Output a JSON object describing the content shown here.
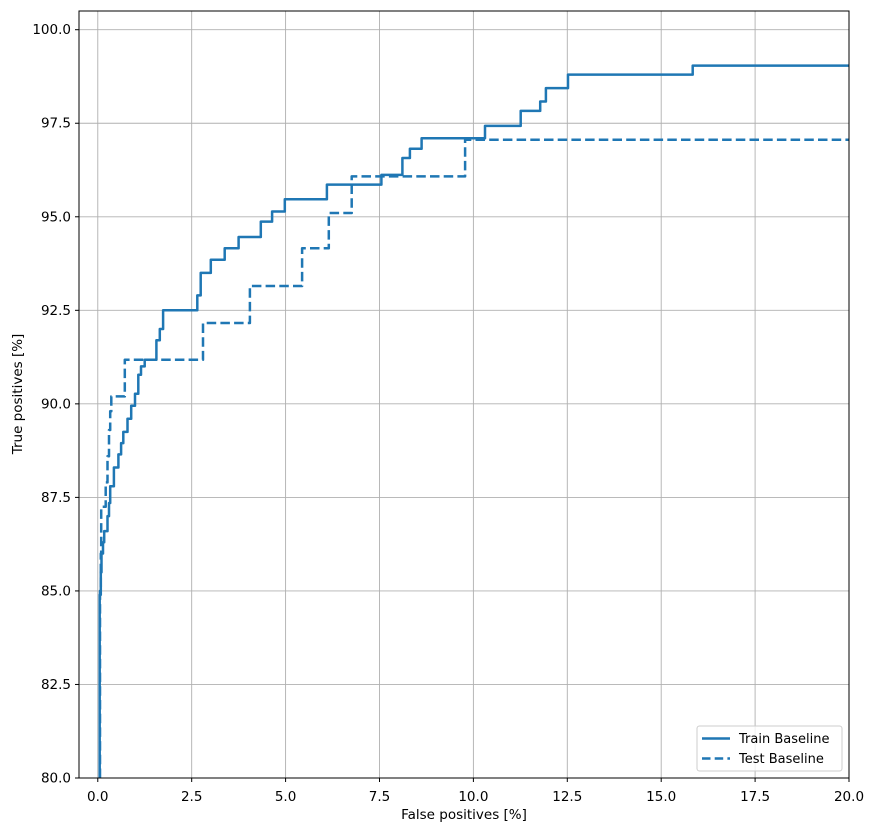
{
  "chart_data": {
    "type": "line",
    "title": "",
    "xlabel": "False positives [%]",
    "ylabel": "True positives [%]",
    "xlim": [
      -0.5,
      20
    ],
    "ylim": [
      80,
      100.5
    ],
    "xticks": [
      0,
      2.5,
      5,
      7.5,
      10,
      12.5,
      15,
      17.5,
      20
    ],
    "xtick_labels": [
      "0.0",
      "2.5",
      "5.0",
      "7.5",
      "10.0",
      "12.5",
      "15.0",
      "17.5",
      "20.0"
    ],
    "yticks": [
      80,
      82.5,
      85,
      87.5,
      90,
      92.5,
      95,
      97.5,
      100
    ],
    "ytick_labels": [
      "80.0",
      "82.5",
      "85.0",
      "87.5",
      "90.0",
      "92.5",
      "95.0",
      "97.5",
      "100.0"
    ],
    "grid": true,
    "grid_color": "#b0b0b0",
    "line_color": "#1f77b4",
    "legend": {
      "position": "lower right",
      "entries": [
        "Train Baseline",
        "Test Baseline"
      ]
    },
    "series": [
      {
        "name": "Train Baseline",
        "line_style": "solid",
        "step_mode": "post",
        "points": [
          [
            0.05,
            80.0
          ],
          [
            0.05,
            84.9
          ],
          [
            0.08,
            85.5
          ],
          [
            0.1,
            86.0
          ],
          [
            0.14,
            86.3
          ],
          [
            0.17,
            86.6
          ],
          [
            0.26,
            87.0
          ],
          [
            0.3,
            87.35
          ],
          [
            0.33,
            87.8
          ],
          [
            0.43,
            88.3
          ],
          [
            0.55,
            88.65
          ],
          [
            0.62,
            88.95
          ],
          [
            0.68,
            89.25
          ],
          [
            0.79,
            89.6
          ],
          [
            0.89,
            89.95
          ],
          [
            0.99,
            90.27
          ],
          [
            1.08,
            90.78
          ],
          [
            1.15,
            91.0
          ],
          [
            1.25,
            91.18
          ],
          [
            1.56,
            91.7
          ],
          [
            1.65,
            92.0
          ],
          [
            1.74,
            92.5
          ],
          [
            2.65,
            92.9
          ],
          [
            2.74,
            93.5
          ],
          [
            3.01,
            93.85
          ],
          [
            3.38,
            94.16
          ],
          [
            3.75,
            94.46
          ],
          [
            4.34,
            94.87
          ],
          [
            4.64,
            95.14
          ],
          [
            4.98,
            95.47
          ],
          [
            6.1,
            95.86
          ],
          [
            7.55,
            96.12
          ],
          [
            8.11,
            96.57
          ],
          [
            8.31,
            96.82
          ],
          [
            8.62,
            97.1
          ],
          [
            10.31,
            97.43
          ],
          [
            11.26,
            97.83
          ],
          [
            11.78,
            98.08
          ],
          [
            11.93,
            98.44
          ],
          [
            12.52,
            98.8
          ],
          [
            15.84,
            99.04
          ],
          [
            20.0,
            99.04
          ]
        ]
      },
      {
        "name": "Test Baseline",
        "line_style": "dashed",
        "step_mode": "post",
        "points": [
          [
            0.06,
            80.0
          ],
          [
            0.06,
            85.0
          ],
          [
            0.08,
            86.0
          ],
          [
            0.09,
            87.25
          ],
          [
            0.21,
            87.9
          ],
          [
            0.26,
            88.6
          ],
          [
            0.3,
            89.3
          ],
          [
            0.33,
            89.8
          ],
          [
            0.36,
            90.2
          ],
          [
            0.72,
            91.18
          ],
          [
            2.8,
            92.16
          ],
          [
            4.05,
            93.15
          ],
          [
            5.44,
            94.16
          ],
          [
            6.15,
            95.1
          ],
          [
            6.76,
            96.08
          ],
          [
            9.78,
            97.06
          ],
          [
            20.0,
            97.06
          ]
        ]
      }
    ]
  }
}
